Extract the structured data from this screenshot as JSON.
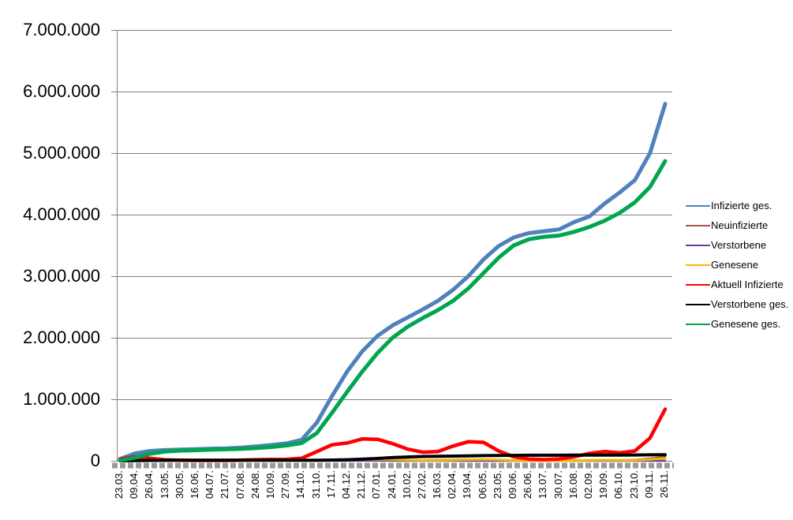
{
  "chart_data": {
    "type": "line",
    "title": "",
    "xlabel": "",
    "ylabel": "",
    "grid": true,
    "legend_position": "right",
    "y_axis": {
      "min": 0,
      "max": 7000000,
      "step": 1000000
    },
    "y_tick_labels": [
      "0",
      "1.000.000",
      "2.000.000",
      "3.000.000",
      "4.000.000",
      "5.000.000",
      "6.000.000",
      "7.000.000"
    ],
    "x_labels": [
      "23.03.",
      "09.04.",
      "26.04.",
      "13.05.",
      "30.05.",
      "16.06.",
      "04.07.",
      "21.07.",
      "07.08.",
      "24.08.",
      "10.09.",
      "27.09.",
      "14.10.",
      "31.10.",
      "17.11.",
      "04.12.",
      "21.12.",
      "07.01.",
      "24.01.",
      "10.02.",
      "27.02.",
      "16.03.",
      "02.04.",
      "19.04.",
      "06.05.",
      "23.05.",
      "09.06.",
      "26.06.",
      "13.07.",
      "30.07.",
      "16.08.",
      "02.09.",
      "19.09.",
      "06.10.",
      "23.10.",
      "09.11.",
      "26.11."
    ],
    "series": [
      {
        "name": "Infizierte ges.",
        "color": "#4F81BD",
        "stroke_width": 5,
        "values": [
          30000,
          120000,
          160000,
          175000,
          183000,
          188000,
          197000,
          203000,
          214000,
          233000,
          256000,
          283000,
          341000,
          620000,
          1050000,
          1450000,
          1780000,
          2030000,
          2200000,
          2330000,
          2460000,
          2600000,
          2780000,
          3000000,
          3270000,
          3490000,
          3630000,
          3700000,
          3730000,
          3760000,
          3880000,
          3970000,
          4180000,
          4360000,
          4560000,
          5000000,
          5800000
        ]
      },
      {
        "name": "Neuinfizierte",
        "color": "#A8544F",
        "stroke_width": 2.5,
        "values": [
          4000,
          5000,
          2000,
          1000,
          500,
          400,
          400,
          600,
          1000,
          1400,
          1500,
          1900,
          4000,
          15000,
          18000,
          18000,
          25000,
          18000,
          12000,
          8000,
          9000,
          13000,
          19000,
          22000,
          17000,
          7000,
          3000,
          900,
          1500,
          3000,
          8000,
          12000,
          8000,
          8000,
          15000,
          38000,
          66000
        ]
      },
      {
        "name": "Verstorbene",
        "color": "#6A3D9A",
        "stroke_width": 2.5,
        "values": [
          100,
          200,
          200,
          100,
          50,
          20,
          20,
          10,
          10,
          10,
          20,
          20,
          30,
          100,
          200,
          400,
          700,
          900,
          800,
          600,
          400,
          200,
          200,
          200,
          200,
          100,
          100,
          50,
          20,
          20,
          30,
          50,
          100,
          100,
          100,
          200,
          300
        ]
      },
      {
        "name": "Genesene",
        "color": "#F2B800",
        "stroke_width": 3,
        "values": [
          1000,
          4000,
          3000,
          1500,
          800,
          500,
          400,
          400,
          600,
          1000,
          1300,
          1500,
          2000,
          5000,
          12000,
          17000,
          20000,
          22000,
          20000,
          13000,
          8000,
          8000,
          13000,
          19000,
          23000,
          15000,
          7000,
          3000,
          1200,
          1500,
          4000,
          9000,
          12000,
          9000,
          10000,
          23000,
          40000
        ]
      },
      {
        "name": "Aktuell Infizierte",
        "color": "#FF0000",
        "stroke_width": 4.5,
        "values": [
          25000,
          65000,
          40000,
          17000,
          10000,
          7000,
          6000,
          7000,
          11000,
          18000,
          22000,
          24000,
          42000,
          150000,
          260000,
          290000,
          355000,
          350000,
          280000,
          190000,
          140000,
          150000,
          240000,
          310000,
          300000,
          160000,
          66000,
          30000,
          21000,
          31000,
          66000,
          120000,
          150000,
          130000,
          160000,
          370000,
          840000
        ]
      },
      {
        "name": "Verstorbene ges.",
        "color": "#000000",
        "stroke_width": 4,
        "values": [
          200,
          2000,
          6000,
          8000,
          8500,
          8800,
          9000,
          9100,
          9200,
          9300,
          9300,
          9500,
          9700,
          10500,
          13000,
          18000,
          27000,
          38000,
          52000,
          63000,
          70000,
          74000,
          77000,
          81000,
          84000,
          87000,
          89000,
          90500,
          91200,
          91600,
          91900,
          92300,
          93000,
          94000,
          95200,
          97000,
          100500
        ]
      },
      {
        "name": "Genesene ges.",
        "color": "#00A550",
        "stroke_width": 5,
        "values": [
          5000,
          50000,
          115000,
          150000,
          165000,
          172000,
          181000,
          187000,
          194000,
          206000,
          225000,
          250000,
          289000,
          450000,
          780000,
          1120000,
          1450000,
          1750000,
          2000000,
          2180000,
          2320000,
          2450000,
          2600000,
          2800000,
          3050000,
          3300000,
          3500000,
          3600000,
          3640000,
          3660000,
          3720000,
          3800000,
          3900000,
          4030000,
          4200000,
          4450000,
          4870000
        ]
      }
    ]
  },
  "style": {
    "background": "#FFFFFF",
    "gridline_color": "#808080",
    "axis_color": "#808080",
    "tick_band_color": "#999999",
    "text_color": "#000000"
  }
}
